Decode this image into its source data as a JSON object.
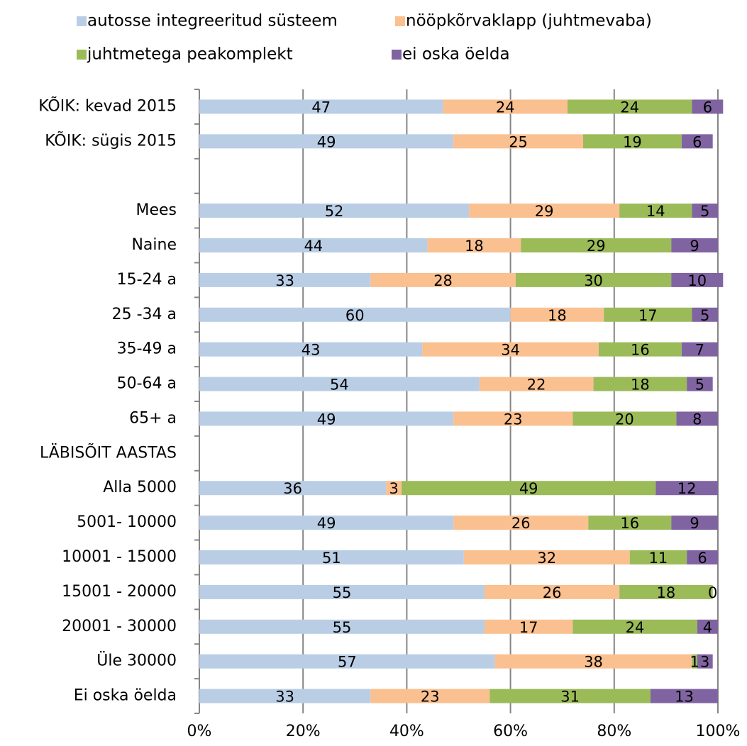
{
  "chart_data": {
    "type": "stacked_bar_horizontal",
    "categories": [
      "KÕIK: kevad 2015",
      "KÕIK: sügis 2015",
      null,
      "Mees",
      "Naine",
      "15-24  a",
      "25 -34  a",
      "35-49  a",
      "50-64  a",
      "65+  a",
      "LÄBISÕIT AASTAS",
      "Alla 5000",
      "5001- 10000",
      "10001 - 15000",
      "15001 - 20000",
      "20001 - 30000",
      "Üle 30000",
      "Ei oska öelda"
    ],
    "series": [
      {
        "name": "autosse integreeritud  süsteem",
        "color": "#b9cde5",
        "values": [
          47,
          49,
          null,
          52,
          44,
          33,
          60,
          43,
          54,
          49,
          null,
          36,
          49,
          51,
          55,
          55,
          57,
          33
        ]
      },
      {
        "name": "nööpkõrvaklapp (juhtmevaba)",
        "color": "#fac090",
        "values": [
          24,
          25,
          null,
          29,
          18,
          28,
          18,
          34,
          22,
          23,
          null,
          3,
          26,
          32,
          26,
          17,
          38,
          23
        ]
      },
      {
        "name": "juhtmetega peakomplekt",
        "color": "#9bbb59",
        "values": [
          24,
          19,
          null,
          14,
          29,
          30,
          17,
          16,
          18,
          20,
          null,
          49,
          16,
          11,
          18,
          24,
          1,
          31
        ]
      },
      {
        "name": "ei oska öelda",
        "color": "#8064a2",
        "values": [
          6,
          6,
          null,
          5,
          9,
          10,
          5,
          7,
          5,
          8,
          null,
          12,
          9,
          6,
          0,
          4,
          3,
          13
        ]
      }
    ],
    "xlim": [
      0,
      100
    ],
    "xticks": [
      {
        "value": 0,
        "label": "0%"
      },
      {
        "value": 20,
        "label": "20%"
      },
      {
        "value": 40,
        "label": "40%"
      },
      {
        "value": 60,
        "label": "60%"
      },
      {
        "value": 80,
        "label": "80%"
      },
      {
        "value": 100,
        "label": "100%"
      }
    ],
    "grid": true
  }
}
